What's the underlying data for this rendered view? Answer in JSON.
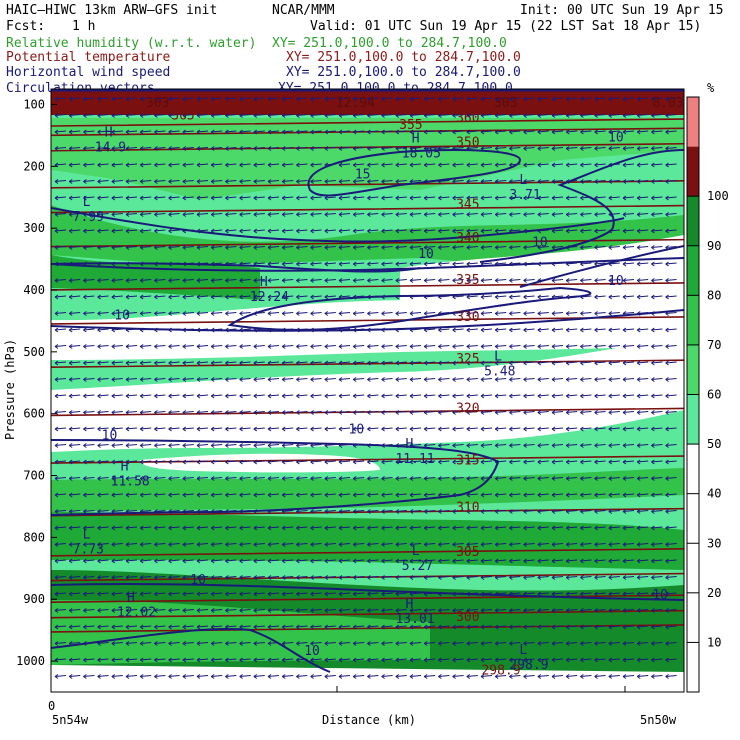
{
  "header": {
    "model": "HAIC–HIWC 13km ARW–GFS init",
    "org": "NCAR/MMM",
    "init": "Init: 00 UTC Sun 19 Apr 15",
    "fcst_label": "Fcst:",
    "fcst_value": "1 h",
    "valid": "Valid: 01 UTC Sun 19 Apr 15 (22 LST Sat 18 Apr 15)"
  },
  "fields": [
    {
      "name": "Relative humidity (w.r.t. water)",
      "xy": "XY= 251.0,100.0 to 284.7,100.0",
      "color": "#2e9e2e"
    },
    {
      "name": "Potential temperature",
      "xy": "XY= 251.0,100.0 to 284.7,100.0",
      "color": "#8b1a1a"
    },
    {
      "name": "Horizontal wind speed",
      "xy": "XY= 251.0,100.0 to 284.7,100.0",
      "color": "#1a1a7a"
    },
    {
      "name": "Circulation vectors",
      "xy": "XY= 251.0,100.0 to 284.7,100.0",
      "color": "#1a1a7a"
    }
  ],
  "chart_data": {
    "type": "heatmap",
    "ylabel": "Pressure (hPa)",
    "xlabel": "Distance (km)",
    "yticks": [
      100,
      200,
      300,
      400,
      500,
      600,
      700,
      800,
      900,
      1000
    ],
    "ylim": [
      1050,
      75
    ],
    "xlim": [
      0,
      1
    ],
    "x_start_label": "0",
    "x_left_label": "5n54w",
    "x_right_label": "5n50w",
    "colorbar": {
      "unit": "%",
      "ticks": [
        10,
        20,
        30,
        40,
        50,
        60,
        70,
        80,
        90,
        100
      ],
      "bands": [
        {
          "lo": 0,
          "hi": 50,
          "color": "#ffffff"
        },
        {
          "lo": 50,
          "hi": 60,
          "color": "#5ce89a"
        },
        {
          "lo": 60,
          "hi": 70,
          "color": "#4dd86a"
        },
        {
          "lo": 70,
          "hi": 80,
          "color": "#33c24a"
        },
        {
          "lo": 80,
          "hi": 90,
          "color": "#1faa38"
        },
        {
          "lo": 90,
          "hi": 100,
          "color": "#148a2a"
        },
        {
          "lo": 100,
          "hi": 110,
          "color": "#7a1010"
        },
        {
          "lo": 110,
          "hi": 120,
          "color": "#f08080"
        }
      ]
    },
    "theta_labels": [
      {
        "value": "365",
        "x": 0.19,
        "p": 124
      },
      {
        "value": "360",
        "x": 0.64,
        "p": 128
      },
      {
        "value": "355",
        "x": 0.55,
        "p": 140
      },
      {
        "value": "350",
        "x": 0.64,
        "p": 168
      },
      {
        "value": "345",
        "x": 0.64,
        "p": 268
      },
      {
        "value": "340",
        "x": 0.64,
        "p": 322
      },
      {
        "value": "335",
        "x": 0.64,
        "p": 390
      },
      {
        "value": "330",
        "x": 0.64,
        "p": 450
      },
      {
        "value": "325",
        "x": 0.64,
        "p": 518
      },
      {
        "value": "320",
        "x": 0.64,
        "p": 598
      },
      {
        "value": "315",
        "x": 0.64,
        "p": 682
      },
      {
        "value": "310",
        "x": 0.64,
        "p": 758
      },
      {
        "value": "305",
        "x": 0.64,
        "p": 830
      },
      {
        "value": "300",
        "x": 0.64,
        "p": 935
      },
      {
        "value": "298.9",
        "x": 0.68,
        "p": 1022
      }
    ],
    "theta_isolines_p": [
      96,
      130,
      145,
      170,
      230,
      270,
      325,
      395,
      450,
      520,
      598,
      675,
      760,
      825,
      865,
      900,
      925,
      948
    ],
    "wind_labels": [
      {
        "value": "15",
        "x": 0.48,
        "p": 220
      },
      {
        "value": "10",
        "x": 0.88,
        "p": 160
      },
      {
        "value": "10",
        "x": 0.58,
        "p": 348
      },
      {
        "value": "10",
        "x": 0.76,
        "p": 330
      },
      {
        "value": "10",
        "x": 0.88,
        "p": 392
      },
      {
        "value": "10",
        "x": 0.1,
        "p": 448
      },
      {
        "value": "10",
        "x": 0.47,
        "p": 632
      },
      {
        "value": "10",
        "x": 0.08,
        "p": 642
      },
      {
        "value": "10",
        "x": 0.22,
        "p": 875
      },
      {
        "value": "10",
        "x": 0.95,
        "p": 900
      },
      {
        "value": "10",
        "x": 0.4,
        "p": 990
      }
    ],
    "extrema": [
      {
        "kind": "H",
        "value": "14.9",
        "x": 0.085,
        "p": 168
      },
      {
        "kind": "H",
        "value": "18.05",
        "x": 0.57,
        "p": 178
      },
      {
        "kind": "L",
        "value": "3.71",
        "x": 0.74,
        "p": 245
      },
      {
        "kind": "L",
        "value": "7.99",
        "x": 0.05,
        "p": 280
      },
      {
        "kind": "H",
        "value": "12.24",
        "x": 0.33,
        "p": 410
      },
      {
        "kind": "L",
        "value": "5.48",
        "x": 0.7,
        "p": 530
      },
      {
        "kind": "H",
        "value": "11.11",
        "x": 0.56,
        "p": 672
      },
      {
        "kind": "H",
        "value": "11.58",
        "x": 0.11,
        "p": 708
      },
      {
        "kind": "L",
        "value": "7.73",
        "x": 0.05,
        "p": 818
      },
      {
        "kind": "L",
        "value": "5.27",
        "x": 0.57,
        "p": 845
      },
      {
        "kind": "H",
        "value": "12.02",
        "x": 0.12,
        "p": 920
      },
      {
        "kind": "H",
        "value": "13.01",
        "x": 0.56,
        "p": 930
      },
      {
        "kind": "L",
        "value": "298.9",
        "x": 0.74,
        "p": 1005
      }
    ],
    "top_labels": [
      {
        "value": "303",
        "x": 0.15
      },
      {
        "value": "12.94",
        "x": 0.45
      },
      {
        "value": "303",
        "x": 0.7
      },
      {
        "value": "8.03",
        "x": 0.95
      }
    ]
  }
}
